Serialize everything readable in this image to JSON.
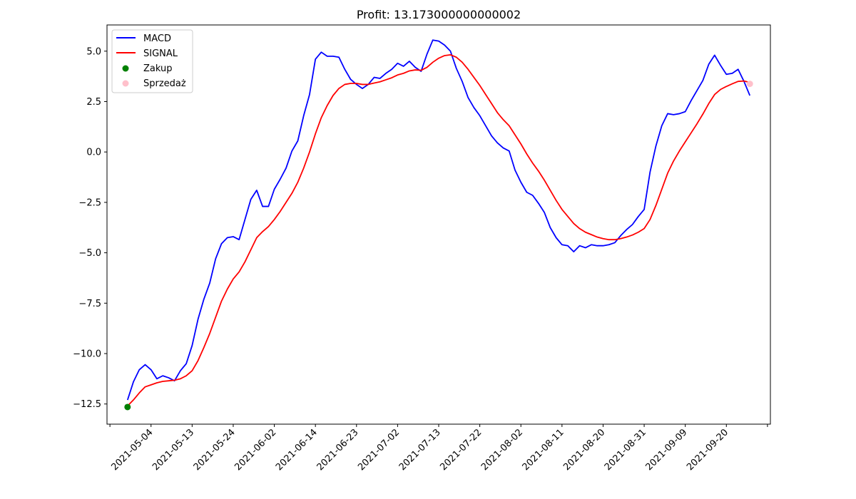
{
  "chart_data": {
    "type": "line",
    "title": "Profit: 13.173000000000002",
    "xlabel": "",
    "ylabel": "",
    "ylim": [
      -13.5,
      6.3
    ],
    "y_ticks": [
      5.0,
      2.5,
      0.0,
      -2.5,
      -5.0,
      -7.5,
      -10.0,
      -12.5
    ],
    "y_tick_labels": [
      "5.0",
      "2.5",
      "0.0",
      "−2.5",
      "−5.0",
      "−7.5",
      "−10.0",
      "−12.5"
    ],
    "x_tick_labels": [
      "2021-05-04",
      "2021-05-13",
      "2021-05-24",
      "2021-06-02",
      "2021-06-14",
      "2021-06-23",
      "2021-07-02",
      "2021-07-13",
      "2021-07-22",
      "2021-08-02",
      "2021-08-11",
      "2021-08-20",
      "2021-08-31",
      "2021-09-09",
      "2021-09-20"
    ],
    "x_ticks": [
      4,
      11,
      18,
      25,
      32,
      39,
      46,
      53,
      60,
      67,
      74,
      81,
      88,
      95,
      102
    ],
    "xlim": [
      -3.5,
      109.5
    ],
    "series": [
      {
        "name": "MACD",
        "color": "#0000ff",
        "x": [
          0,
          1,
          2,
          3,
          4,
          5,
          6,
          7,
          8,
          9,
          10,
          11,
          12,
          13,
          14,
          15,
          16,
          17,
          18,
          19,
          20,
          21,
          22,
          23,
          24,
          25,
          26,
          27,
          28,
          29,
          30,
          31,
          32,
          33,
          34,
          35,
          36,
          37,
          38,
          39,
          40,
          41,
          42,
          43,
          44,
          45,
          46,
          47,
          48,
          49,
          50,
          51,
          52,
          53,
          54,
          55,
          56,
          57,
          58,
          59,
          60,
          61,
          62,
          63,
          64,
          65,
          66,
          67,
          68,
          69,
          70,
          71,
          72,
          73,
          74,
          75,
          76,
          77,
          78,
          79,
          80,
          81,
          82,
          83,
          84,
          85,
          86,
          87,
          88,
          89,
          90,
          91,
          92,
          93,
          94,
          95,
          96,
          97,
          98,
          99,
          100,
          101,
          102,
          103,
          104,
          105,
          106
        ],
        "values": [
          -12.3,
          -11.4,
          -10.8,
          -10.55,
          -10.8,
          -11.25,
          -11.1,
          -11.2,
          -11.35,
          -10.85,
          -10.5,
          -9.6,
          -8.3,
          -7.3,
          -6.5,
          -5.3,
          -4.55,
          -4.25,
          -4.2,
          -4.35,
          -3.35,
          -2.35,
          -1.9,
          -2.7,
          -2.7,
          -1.85,
          -1.35,
          -0.8,
          0.05,
          0.55,
          1.8,
          2.85,
          4.6,
          4.95,
          4.75,
          4.75,
          4.7,
          4.1,
          3.6,
          3.35,
          3.15,
          3.35,
          3.7,
          3.65,
          3.9,
          4.1,
          4.4,
          4.25,
          4.5,
          4.2,
          4.0,
          4.85,
          5.55,
          5.5,
          5.3,
          5.0,
          4.15,
          3.5,
          2.7,
          2.2,
          1.8,
          1.3,
          0.8,
          0.45,
          0.2,
          0.05,
          -0.9,
          -1.5,
          -2.0,
          -2.15,
          -2.55,
          -3.0,
          -3.75,
          -4.25,
          -4.6,
          -4.65,
          -4.95,
          -4.65,
          -4.75,
          -4.6,
          -4.65,
          -4.65,
          -4.6,
          -4.5,
          -4.15,
          -3.85,
          -3.6,
          -3.2,
          -2.85,
          -1.0,
          0.3,
          1.3,
          1.9,
          1.85,
          1.9,
          2.0,
          2.55,
          3.05,
          3.55,
          4.35,
          4.8,
          4.3,
          3.85,
          3.9,
          4.1,
          3.5,
          2.8
        ]
      },
      {
        "name": "SIGNAL",
        "color": "#ff0000",
        "x": [
          0,
          1,
          2,
          3,
          4,
          5,
          6,
          7,
          8,
          9,
          10,
          11,
          12,
          13,
          14,
          15,
          16,
          17,
          18,
          19,
          20,
          21,
          22,
          23,
          24,
          25,
          26,
          27,
          28,
          29,
          30,
          31,
          32,
          33,
          34,
          35,
          36,
          37,
          38,
          39,
          40,
          41,
          42,
          43,
          44,
          45,
          46,
          47,
          48,
          49,
          50,
          51,
          52,
          53,
          54,
          55,
          56,
          57,
          58,
          59,
          60,
          61,
          62,
          63,
          64,
          65,
          66,
          67,
          68,
          69,
          70,
          71,
          72,
          73,
          74,
          75,
          76,
          77,
          78,
          79,
          80,
          81,
          82,
          83,
          84,
          85,
          86,
          87,
          88,
          89,
          90,
          91,
          92,
          93,
          94,
          95,
          96,
          97,
          98,
          99,
          100,
          101,
          102,
          103,
          104,
          105,
          106
        ],
        "values": [
          -12.6,
          -12.3,
          -11.95,
          -11.65,
          -11.55,
          -11.45,
          -11.38,
          -11.35,
          -11.32,
          -11.25,
          -11.1,
          -10.85,
          -10.35,
          -9.7,
          -9.0,
          -8.2,
          -7.4,
          -6.8,
          -6.3,
          -5.95,
          -5.45,
          -4.85,
          -4.25,
          -3.95,
          -3.7,
          -3.35,
          -2.95,
          -2.5,
          -2.05,
          -1.5,
          -0.8,
          0.0,
          0.9,
          1.7,
          2.3,
          2.8,
          3.15,
          3.35,
          3.4,
          3.4,
          3.35,
          3.35,
          3.42,
          3.48,
          3.58,
          3.68,
          3.82,
          3.9,
          4.02,
          4.07,
          4.05,
          4.2,
          4.45,
          4.65,
          4.78,
          4.82,
          4.7,
          4.45,
          4.1,
          3.7,
          3.3,
          2.85,
          2.4,
          1.95,
          1.6,
          1.3,
          0.85,
          0.4,
          -0.1,
          -0.55,
          -0.95,
          -1.4,
          -1.9,
          -2.4,
          -2.85,
          -3.2,
          -3.55,
          -3.8,
          -3.98,
          -4.1,
          -4.22,
          -4.3,
          -4.35,
          -4.35,
          -4.3,
          -4.22,
          -4.12,
          -3.98,
          -3.8,
          -3.35,
          -2.65,
          -1.85,
          -1.05,
          -0.45,
          0.05,
          0.5,
          0.95,
          1.4,
          1.88,
          2.4,
          2.85,
          3.1,
          3.25,
          3.38,
          3.5,
          3.52,
          3.45
        ]
      }
    ],
    "markers": [
      {
        "name": "Zakup",
        "color": "#008000",
        "x": 0,
        "y": -12.65
      },
      {
        "name": "Sprzedaż",
        "color": "#ffc0cb",
        "x": 106,
        "y": 3.38
      }
    ],
    "legend": {
      "position": "upper-left",
      "entries": [
        {
          "label": "MACD",
          "kind": "line",
          "color": "#0000ff"
        },
        {
          "label": "SIGNAL",
          "kind": "line",
          "color": "#ff0000"
        },
        {
          "label": "Zakup",
          "kind": "marker",
          "color": "#008000"
        },
        {
          "label": "Sprzedaż",
          "kind": "marker",
          "color": "#ffc0cb"
        }
      ]
    },
    "grid": false
  }
}
